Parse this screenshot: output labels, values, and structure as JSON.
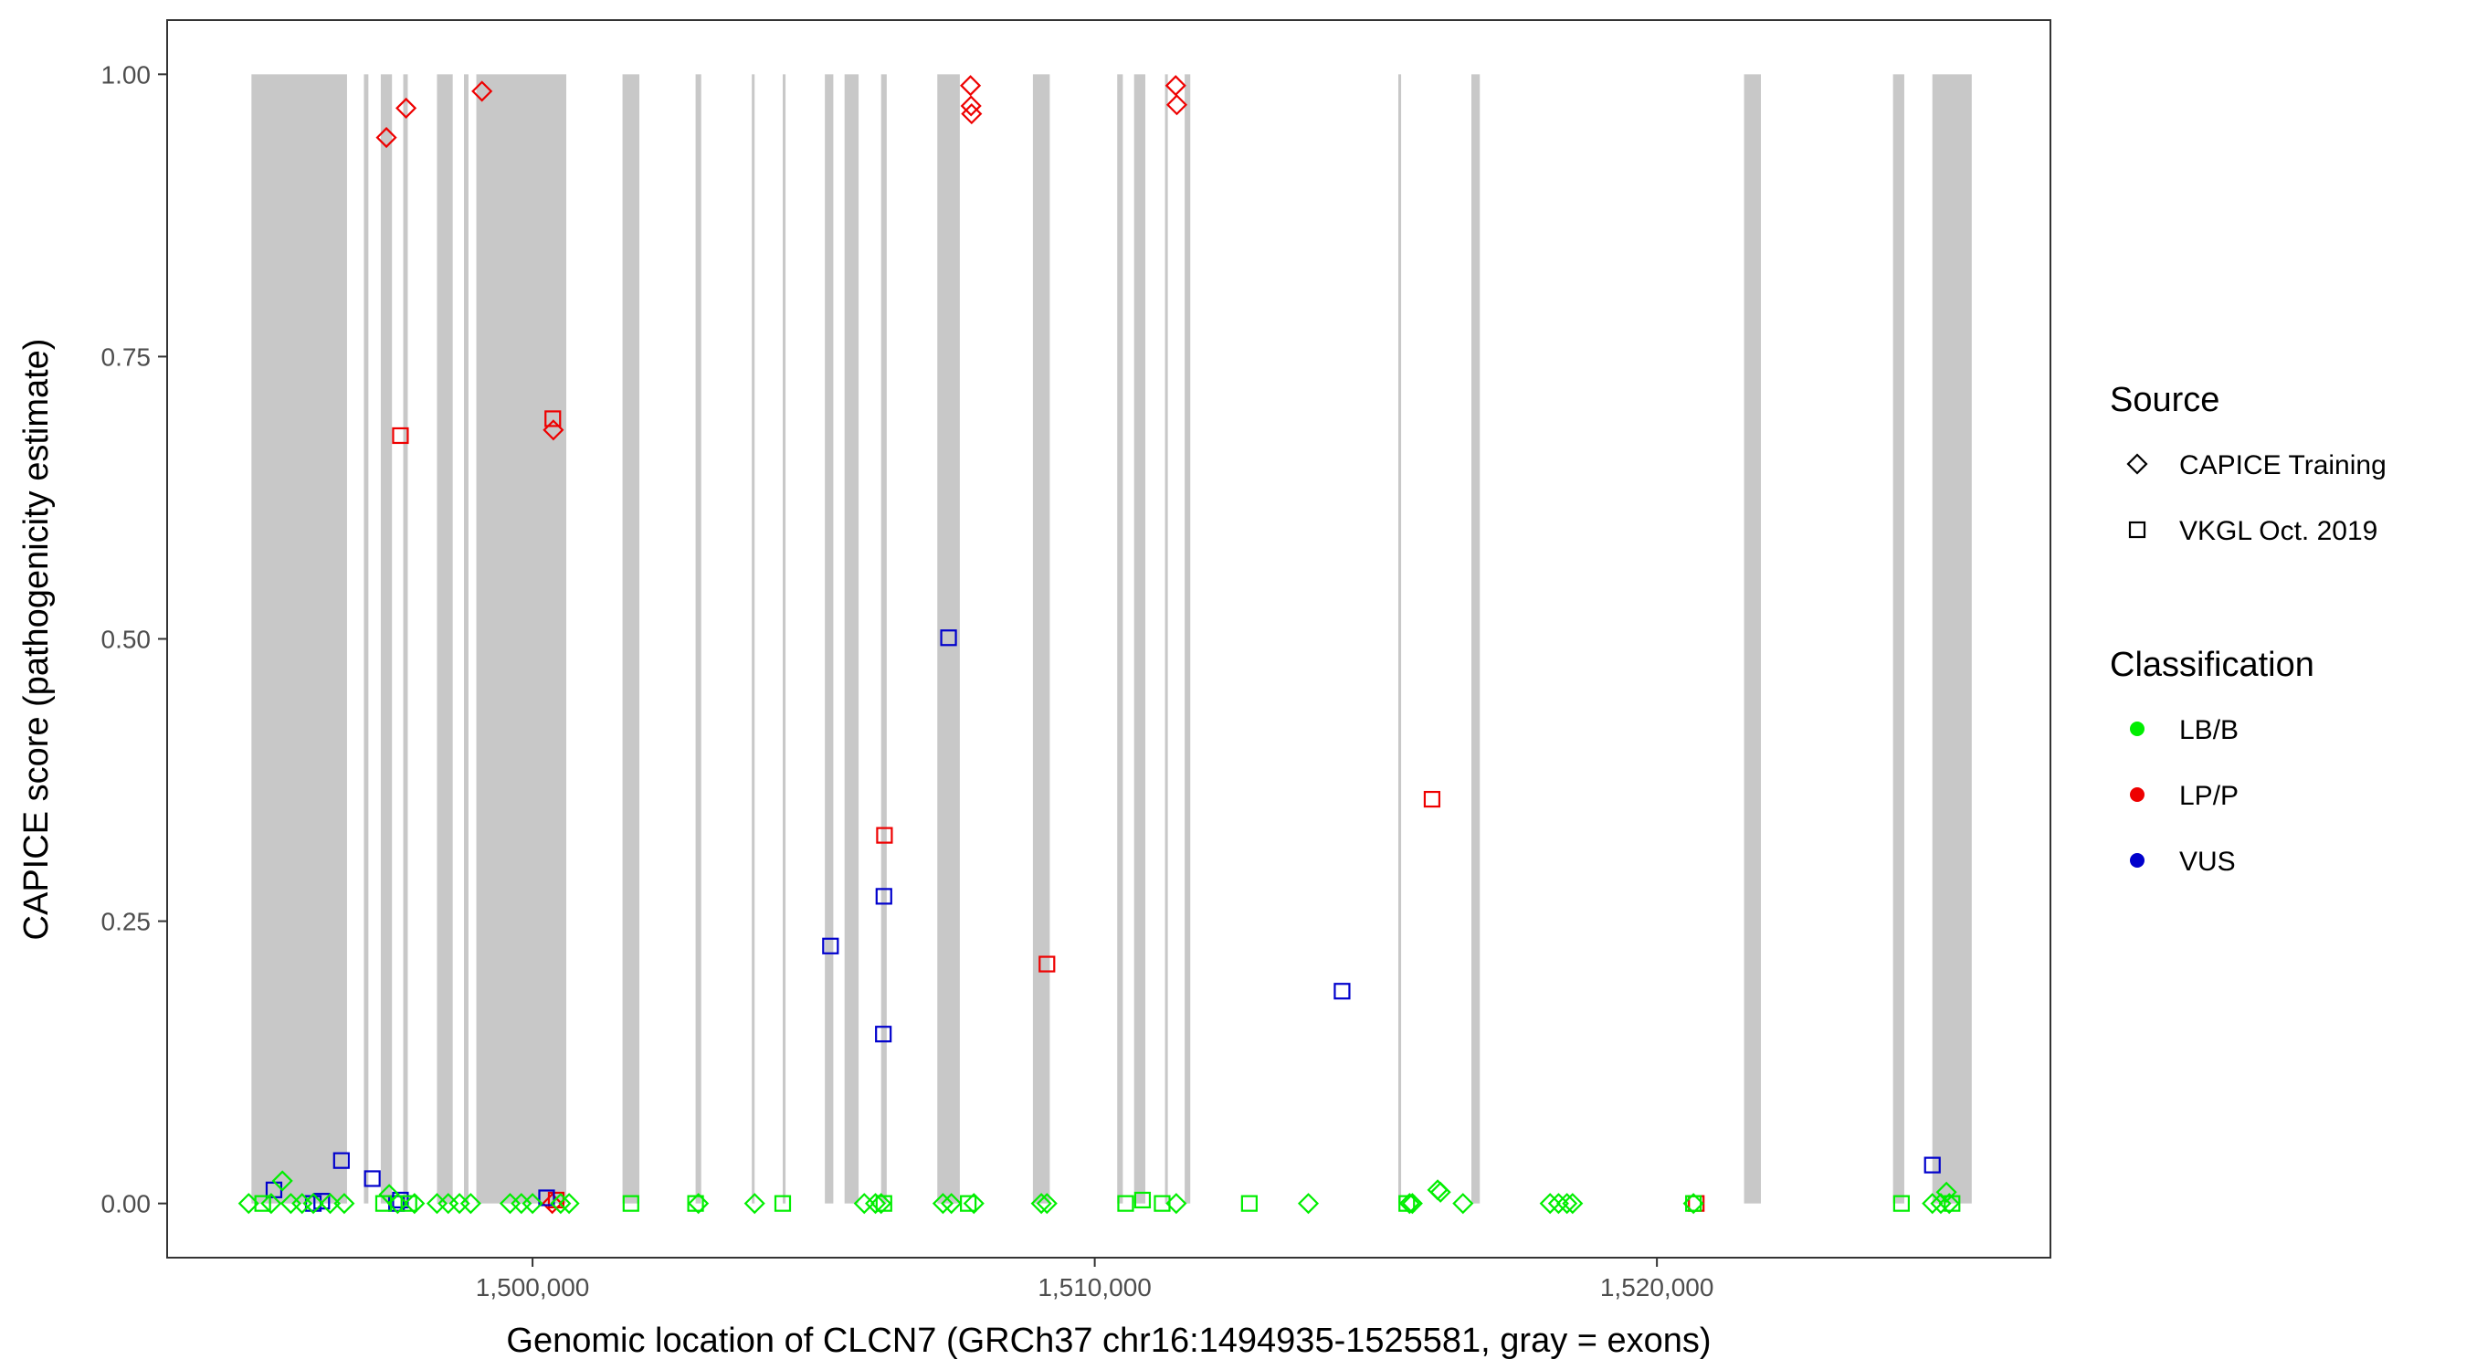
{
  "chart_data": {
    "type": "scatter",
    "xlabel": "Genomic location of CLCN7 (GRCh37 chr16:1494935-1525581, gray = exons)",
    "ylabel": "CAPICE score (pathogenicity estimate)",
    "xlim": [
      1493500,
      1527000
    ],
    "ylim": [
      -0.048,
      1.048
    ],
    "x_ticks": [
      1500000,
      1510000,
      1520000
    ],
    "x_tick_labels": [
      "1,500,000",
      "1,510,000",
      "1,520,000"
    ],
    "y_ticks": [
      0,
      0.25,
      0.5,
      0.75,
      1.0
    ],
    "y_tick_labels": [
      "0.00",
      "0.25",
      "0.50",
      "0.75",
      "1.00"
    ],
    "grid": false,
    "legend_position": "right",
    "exon_regions": [
      [
        1495000,
        1496700
      ],
      [
        1497000,
        1497080
      ],
      [
        1497300,
        1497500
      ],
      [
        1497700,
        1497780
      ],
      [
        1498300,
        1498580
      ],
      [
        1498780,
        1498860
      ],
      [
        1499000,
        1500600
      ],
      [
        1501600,
        1501900
      ],
      [
        1502900,
        1503000
      ],
      [
        1503900,
        1503950
      ],
      [
        1504450,
        1504500
      ],
      [
        1505200,
        1505350
      ],
      [
        1505550,
        1505800
      ],
      [
        1506200,
        1506300
      ],
      [
        1507200,
        1507600
      ],
      [
        1508900,
        1509200
      ],
      [
        1510400,
        1510500
      ],
      [
        1510700,
        1510900
      ],
      [
        1511250,
        1511300
      ],
      [
        1511600,
        1511700
      ],
      [
        1515400,
        1515450
      ],
      [
        1516700,
        1516850
      ],
      [
        1521550,
        1521850
      ],
      [
        1524200,
        1524400
      ],
      [
        1524900,
        1525600
      ]
    ],
    "exon_color": "#c8c8c8",
    "source_legend": {
      "title": "Source",
      "entries": [
        {
          "label": "CAPICE Training",
          "shape": "diamond"
        },
        {
          "label": "VKGL Oct. 2019",
          "shape": "square"
        }
      ]
    },
    "classification_legend": {
      "title": "Classification",
      "entries": [
        {
          "label": "LB/B",
          "color": "#00ee00"
        },
        {
          "label": "LP/P",
          "color": "#ee0000"
        },
        {
          "label": "VUS",
          "color": "#0000cc"
        }
      ]
    },
    "series": [
      {
        "source": "CAPICE Training",
        "classification": "LP/P",
        "x": [
          1497400,
          1497750,
          1499100,
          1500370,
          1507790,
          1507800,
          1507810,
          1511440,
          1511460,
          1500350
        ],
        "y": [
          0.944,
          0.97,
          0.985,
          0.685,
          0.99,
          0.972,
          0.965,
          0.99,
          0.973,
          0.0
        ]
      },
      {
        "source": "VKGL Oct. 2019",
        "classification": "LP/P",
        "x": [
          1497650,
          1500360,
          1506260,
          1509150,
          1516000,
          1500420,
          1520700
        ],
        "y": [
          0.68,
          0.695,
          0.326,
          0.212,
          0.358,
          0.003,
          0.0
        ]
      },
      {
        "source": "VKGL Oct. 2019",
        "classification": "VUS",
        "x": [
          1495400,
          1496100,
          1496250,
          1496600,
          1497150,
          1497580,
          1497650,
          1500250,
          1505300,
          1506250,
          1506240,
          1507400,
          1514400,
          1524900
        ],
        "y": [
          0.012,
          0.0,
          0.002,
          0.038,
          0.022,
          0.0,
          0.003,
          0.005,
          0.228,
          0.272,
          0.15,
          0.501,
          0.188,
          0.034
        ]
      },
      {
        "source": "CAPICE Training",
        "classification": "LB/B",
        "x": [
          1494950,
          1495350,
          1495550,
          1495700,
          1495900,
          1496100,
          1496400,
          1496650,
          1497450,
          1497600,
          1497900,
          1498300,
          1498500,
          1498700,
          1498900,
          1499600,
          1499800,
          1500000,
          1500500,
          1500650,
          1502950,
          1503950,
          1505900,
          1506100,
          1506200,
          1507300,
          1507450,
          1507850,
          1509050,
          1509150,
          1511450,
          1513800,
          1515600,
          1515650,
          1516100,
          1516150,
          1516550,
          1518100,
          1518250,
          1518400,
          1518500,
          1520650,
          1524900,
          1525050,
          1525150,
          1525200
        ],
        "y": [
          0.0,
          0.0,
          0.02,
          0.0,
          0.0,
          0.0,
          0.0,
          0.0,
          0.008,
          0.0,
          0.0,
          0.0,
          0.0,
          0.0,
          0.0,
          0.0,
          0.0,
          0.0,
          0.0,
          0.0,
          0.0,
          0.0,
          0.0,
          0.0,
          0.0,
          0.0,
          0.0,
          0.0,
          0.0,
          0.0,
          0.0,
          0.0,
          0.0,
          0.0,
          0.012,
          0.01,
          0.0,
          0.0,
          0.0,
          0.0,
          0.0,
          0.0,
          0.0,
          0.0,
          0.01,
          0.0
        ]
      },
      {
        "source": "VKGL Oct. 2019",
        "classification": "LB/B",
        "x": [
          1495200,
          1497350,
          1497800,
          1501750,
          1502900,
          1504450,
          1506250,
          1507750,
          1510550,
          1510850,
          1511200,
          1512750,
          1515550,
          1520650,
          1524350,
          1525250
        ],
        "y": [
          0.0,
          0.0,
          0.0,
          0.0,
          0.0,
          0.0,
          0.0,
          0.0,
          0.0,
          0.003,
          0.0,
          0.0,
          0.0,
          0.0,
          0.0,
          0.0
        ]
      }
    ]
  }
}
